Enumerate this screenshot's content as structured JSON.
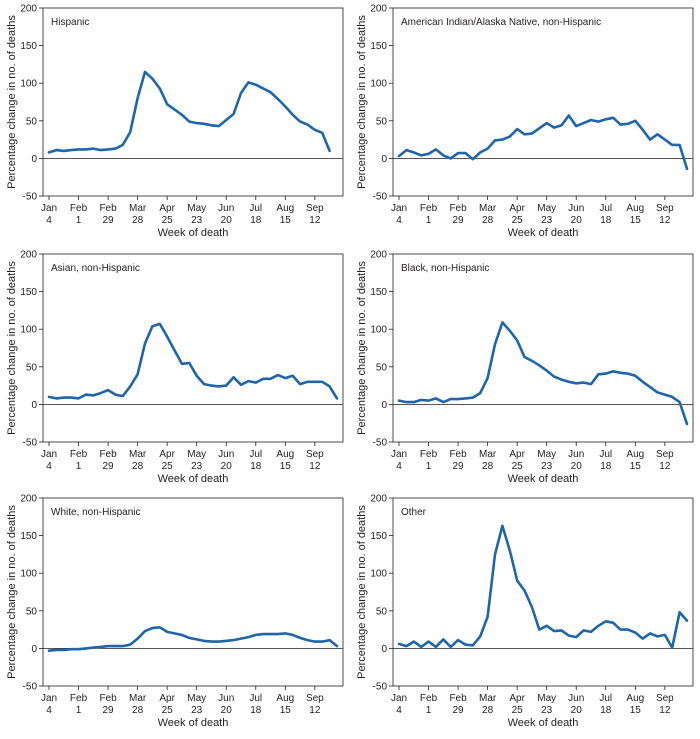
{
  "chart_data": [
    {
      "type": "line",
      "title": "Hispanic",
      "xlabel": "Week of death",
      "ylabel": "Percentage change in no. of deaths",
      "ylim": [
        -50,
        200
      ],
      "yticks": [
        -50,
        0,
        50,
        100,
        150,
        200
      ],
      "xticks": [
        {
          "line1": "Jan",
          "line2": "4",
          "week": 0
        },
        {
          "line1": "Feb",
          "line2": "1",
          "week": 4
        },
        {
          "line1": "Feb",
          "line2": "29",
          "week": 8
        },
        {
          "line1": "Mar",
          "line2": "28",
          "week": 12
        },
        {
          "line1": "Apr",
          "line2": "25",
          "week": 16
        },
        {
          "line1": "May",
          "line2": "23",
          "week": 20
        },
        {
          "line1": "Jun",
          "line2": "20",
          "week": 24
        },
        {
          "line1": "Jul",
          "line2": "18",
          "week": 28
        },
        {
          "line1": "Aug",
          "line2": "15",
          "week": 32
        },
        {
          "line1": "Sep",
          "line2": "12",
          "week": 36
        }
      ],
      "values": [
        8,
        11,
        10,
        11,
        12,
        12,
        13,
        11,
        12,
        13,
        18,
        35,
        80,
        115,
        106,
        93,
        72,
        65,
        58,
        49,
        47,
        46,
        44,
        43,
        51,
        59,
        87,
        101,
        98,
        93,
        88,
        79,
        69,
        58,
        49,
        45,
        38,
        34,
        10
      ]
    },
    {
      "type": "line",
      "title": "American Indian/Alaska Native, non-Hispanic",
      "xlabel": "Week of death",
      "ylabel": "Percentage change in no. of deaths",
      "ylim": [
        -50,
        200
      ],
      "yticks": [
        -50,
        0,
        50,
        100,
        150,
        200
      ],
      "xticks": [
        {
          "line1": "Jan",
          "line2": "4",
          "week": 0
        },
        {
          "line1": "Feb",
          "line2": "1",
          "week": 4
        },
        {
          "line1": "Feb",
          "line2": "29",
          "week": 8
        },
        {
          "line1": "Mar",
          "line2": "28",
          "week": 12
        },
        {
          "line1": "Apr",
          "line2": "25",
          "week": 16
        },
        {
          "line1": "May",
          "line2": "23",
          "week": 20
        },
        {
          "line1": "Jun",
          "line2": "20",
          "week": 24
        },
        {
          "line1": "Jul",
          "line2": "18",
          "week": 28
        },
        {
          "line1": "Aug",
          "line2": "15",
          "week": 32
        },
        {
          "line1": "Sep",
          "line2": "12",
          "week": 36
        }
      ],
      "values": [
        3,
        11,
        8,
        4,
        6,
        12,
        4,
        0,
        7,
        7,
        -1,
        8,
        13,
        24,
        25,
        29,
        39,
        32,
        33,
        40,
        47,
        41,
        44,
        57,
        43,
        47,
        51,
        49,
        52,
        54,
        45,
        46,
        50,
        38,
        25,
        32,
        25,
        18,
        18,
        -14
      ]
    },
    {
      "type": "line",
      "title": "Asian, non-Hispanic",
      "xlabel": "Week of death",
      "ylabel": "Percentage change in no. of deaths",
      "ylim": [
        -50,
        200
      ],
      "yticks": [
        -50,
        0,
        50,
        100,
        150,
        200
      ],
      "xticks": [
        {
          "line1": "Jan",
          "line2": "4",
          "week": 0
        },
        {
          "line1": "Feb",
          "line2": "1",
          "week": 4
        },
        {
          "line1": "Feb",
          "line2": "29",
          "week": 8
        },
        {
          "line1": "Mar",
          "line2": "28",
          "week": 12
        },
        {
          "line1": "Apr",
          "line2": "25",
          "week": 16
        },
        {
          "line1": "May",
          "line2": "23",
          "week": 20
        },
        {
          "line1": "Jun",
          "line2": "20",
          "week": 24
        },
        {
          "line1": "Jul",
          "line2": "18",
          "week": 28
        },
        {
          "line1": "Aug",
          "line2": "15",
          "week": 32
        },
        {
          "line1": "Sep",
          "line2": "12",
          "week": 36
        }
      ],
      "values": [
        10,
        8,
        9,
        9,
        8,
        13,
        12,
        15,
        19,
        13,
        11,
        24,
        40,
        81,
        104,
        107,
        90,
        72,
        54,
        55,
        38,
        27,
        25,
        24,
        25,
        36,
        26,
        31,
        29,
        34,
        34,
        39,
        35,
        38,
        27,
        30,
        30,
        30,
        24,
        8
      ]
    },
    {
      "type": "line",
      "title": "Black, non-Hispanic",
      "xlabel": "Week of death",
      "ylabel": "Percentage change in no. of deaths",
      "ylim": [
        -50,
        200
      ],
      "yticks": [
        -50,
        0,
        50,
        100,
        150,
        200
      ],
      "xticks": [
        {
          "line1": "Jan",
          "line2": "4",
          "week": 0
        },
        {
          "line1": "Feb",
          "line2": "1",
          "week": 4
        },
        {
          "line1": "Feb",
          "line2": "29",
          "week": 8
        },
        {
          "line1": "Mar",
          "line2": "28",
          "week": 12
        },
        {
          "line1": "Apr",
          "line2": "25",
          "week": 16
        },
        {
          "line1": "May",
          "line2": "23",
          "week": 20
        },
        {
          "line1": "Jun",
          "line2": "20",
          "week": 24
        },
        {
          "line1": "Jul",
          "line2": "18",
          "week": 28
        },
        {
          "line1": "Aug",
          "line2": "15",
          "week": 32
        },
        {
          "line1": "Sep",
          "line2": "12",
          "week": 36
        }
      ],
      "values": [
        5,
        3,
        3,
        6,
        5,
        8,
        3,
        7,
        7,
        8,
        9,
        15,
        35,
        80,
        109,
        98,
        85,
        63,
        58,
        52,
        45,
        37,
        33,
        30,
        28,
        29,
        27,
        40,
        41,
        44,
        42,
        41,
        38,
        30,
        23,
        16,
        13,
        10,
        3,
        -26
      ]
    },
    {
      "type": "line",
      "title": "White, non-Hispanic",
      "xlabel": "Week of death",
      "ylabel": "Percentage change in no. of deaths",
      "ylim": [
        -50,
        200
      ],
      "yticks": [
        -50,
        0,
        50,
        100,
        150,
        200
      ],
      "xticks": [
        {
          "line1": "Jan",
          "line2": "4",
          "week": 0
        },
        {
          "line1": "Feb",
          "line2": "1",
          "week": 4
        },
        {
          "line1": "Feb",
          "line2": "29",
          "week": 8
        },
        {
          "line1": "Mar",
          "line2": "28",
          "week": 12
        },
        {
          "line1": "Apr",
          "line2": "25",
          "week": 16
        },
        {
          "line1": "May",
          "line2": "23",
          "week": 20
        },
        {
          "line1": "Jun",
          "line2": "20",
          "week": 24
        },
        {
          "line1": "Jul",
          "line2": "18",
          "week": 28
        },
        {
          "line1": "Aug",
          "line2": "15",
          "week": 32
        },
        {
          "line1": "Sep",
          "line2": "12",
          "week": 36
        }
      ],
      "values": [
        -3,
        -2,
        -2,
        -1,
        -1,
        0,
        1,
        2,
        3,
        3,
        3,
        5,
        13,
        23,
        27,
        28,
        22,
        20,
        18,
        14,
        12,
        10,
        9,
        9,
        10,
        11,
        13,
        15,
        18,
        19,
        19,
        19,
        20,
        18,
        14,
        11,
        9,
        9,
        11,
        3
      ]
    },
    {
      "type": "line",
      "title": "Other",
      "xlabel": "Week of death",
      "ylabel": "Percentage change in no. of deaths",
      "ylim": [
        -50,
        200
      ],
      "yticks": [
        -50,
        0,
        50,
        100,
        150,
        200
      ],
      "xticks": [
        {
          "line1": "Jan",
          "line2": "4",
          "week": 0
        },
        {
          "line1": "Feb",
          "line2": "1",
          "week": 4
        },
        {
          "line1": "Feb",
          "line2": "29",
          "week": 8
        },
        {
          "line1": "Mar",
          "line2": "28",
          "week": 12
        },
        {
          "line1": "Apr",
          "line2": "25",
          "week": 16
        },
        {
          "line1": "May",
          "line2": "23",
          "week": 20
        },
        {
          "line1": "Jun",
          "line2": "20",
          "week": 24
        },
        {
          "line1": "Jul",
          "line2": "18",
          "week": 28
        },
        {
          "line1": "Aug",
          "line2": "15",
          "week": 32
        },
        {
          "line1": "Sep",
          "line2": "12",
          "week": 36
        }
      ],
      "values": [
        6,
        3,
        9,
        2,
        9,
        2,
        12,
        2,
        11,
        5,
        4,
        16,
        42,
        125,
        163,
        130,
        90,
        77,
        55,
        25,
        30,
        23,
        24,
        17,
        15,
        24,
        22,
        30,
        36,
        34,
        25,
        25,
        21,
        13,
        20,
        16,
        18,
        1,
        48,
        37
      ]
    }
  ],
  "colors": {
    "line": "#1f65ab",
    "axis": "#231f20",
    "zero_line": "#231f20"
  }
}
